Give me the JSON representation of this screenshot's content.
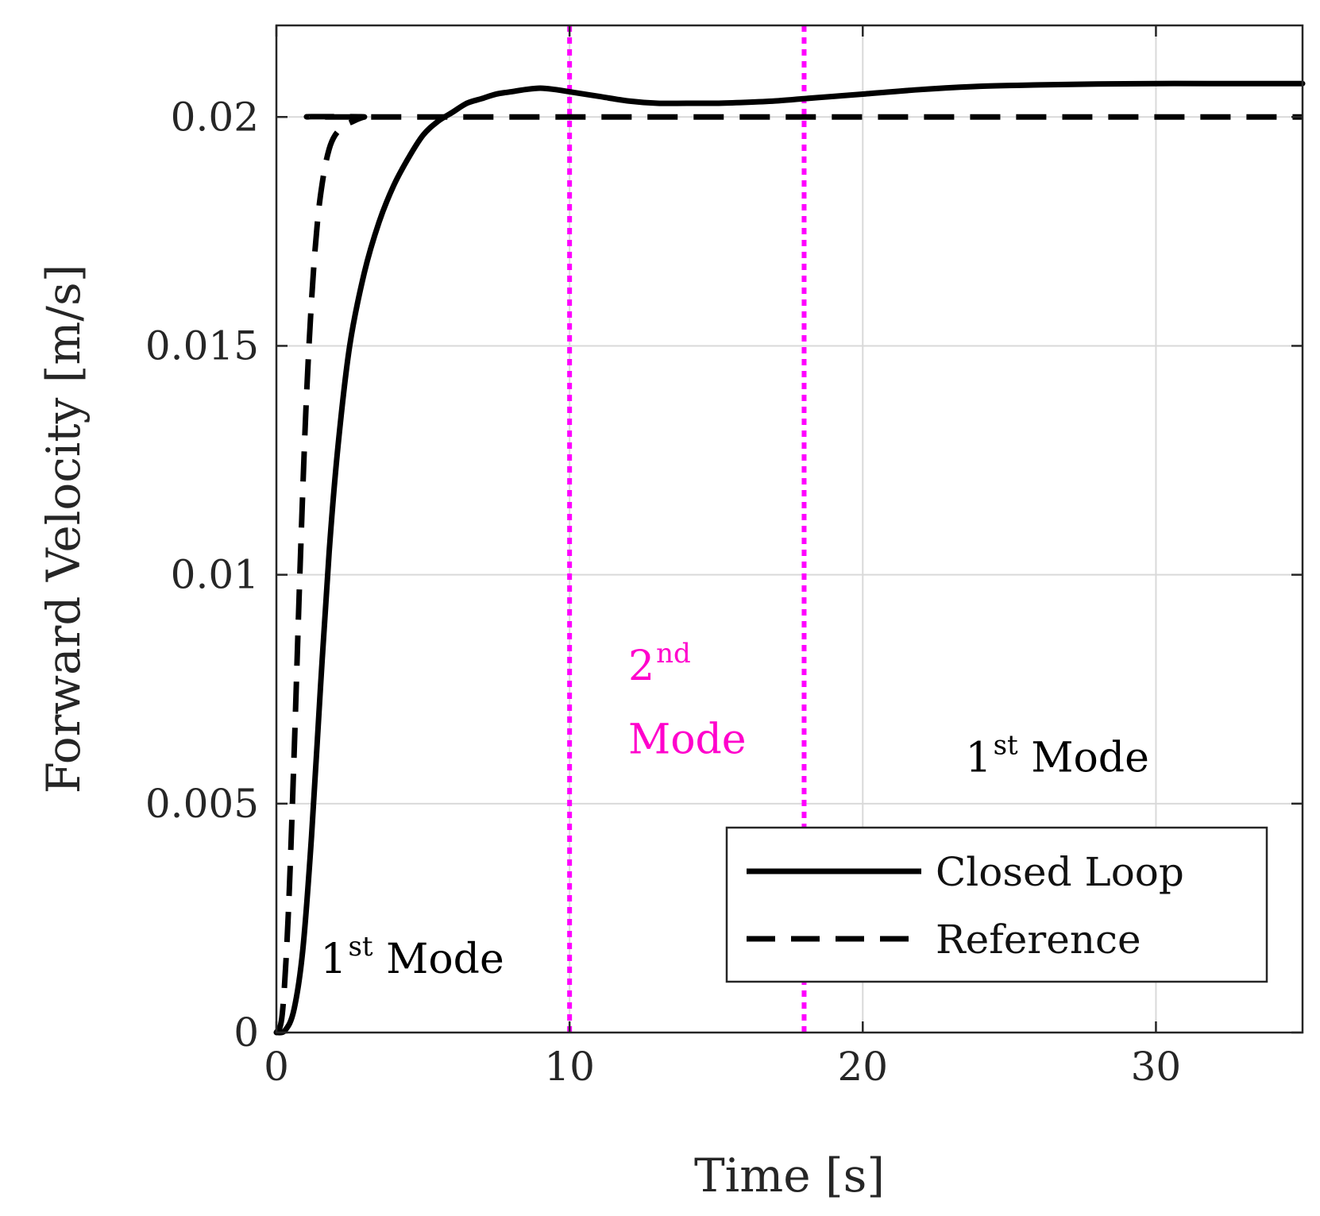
{
  "chart_data": {
    "type": "line",
    "xlabel": "Time [s]",
    "ylabel": "Forward Velocity [m/s]",
    "xlim": [
      0,
      35
    ],
    "ylim": [
      0,
      0.022
    ],
    "grid": true,
    "xticks": [
      0,
      10,
      20,
      30
    ],
    "xtick_labels": [
      "0",
      "10",
      "20",
      "30"
    ],
    "yticks": [
      0,
      0.005,
      0.01,
      0.015,
      0.02
    ],
    "ytick_labels": [
      "0",
      "0.005",
      "0.01",
      "0.015",
      "0.02"
    ],
    "legend_position": "bottom-right",
    "series": [
      {
        "name": "Closed Loop",
        "style": "solid",
        "color": "#000000",
        "x": [
          0,
          0.3,
          0.6,
          0.9,
          1.2,
          1.5,
          1.8,
          2.1,
          2.5,
          3,
          3.5,
          4,
          4.5,
          5,
          5.5,
          6,
          6.5,
          7,
          7.5,
          8,
          8.5,
          9,
          9.5,
          10,
          11,
          12,
          13,
          14,
          15,
          16,
          17,
          18,
          19,
          20,
          22,
          24,
          26,
          28,
          30,
          32,
          35
        ],
        "y": [
          0,
          5e-05,
          0.0005,
          0.0018,
          0.0043,
          0.0075,
          0.0105,
          0.0128,
          0.015,
          0.0166,
          0.0177,
          0.0185,
          0.0191,
          0.0196,
          0.0199,
          0.0201,
          0.0203,
          0.0204,
          0.0205,
          0.02055,
          0.0206,
          0.02063,
          0.0206,
          0.02055,
          0.02045,
          0.02035,
          0.0203,
          0.0203,
          0.0203,
          0.02032,
          0.02035,
          0.0204,
          0.02045,
          0.0205,
          0.0206,
          0.02067,
          0.0207,
          0.02072,
          0.02073,
          0.02073,
          0.02073
        ]
      },
      {
        "name": "Reference",
        "style": "dashed",
        "color": "#000000",
        "x": [
          0,
          0.2,
          0.4,
          0.6,
          0.8,
          1.0,
          1.2,
          1.4,
          1.6,
          1.8,
          2.0,
          2.3,
          2.6,
          3.0,
          3.5,
          35
        ],
        "y": [
          0,
          0.0004,
          0.0025,
          0.006,
          0.01,
          0.0135,
          0.016,
          0.0177,
          0.0187,
          0.0193,
          0.0196,
          0.0198,
          0.0199,
          0.02,
          0.02,
          0.02
        ]
      }
    ],
    "vlines": [
      {
        "x": 10,
        "style": "dotted",
        "color": "#ff00ff"
      },
      {
        "x": 18,
        "style": "dotted",
        "color": "#ff00ff"
      }
    ],
    "annotations": [
      {
        "id": "mode1-left",
        "base": "1",
        "sup": "st",
        "rest": " Mode",
        "x": 1.5,
        "y": 0.0013,
        "color": "#000000"
      },
      {
        "id": "mode2-line1",
        "base": "2",
        "sup": "nd",
        "rest": "",
        "x": 12,
        "y": 0.0077,
        "color": "#ff00cc"
      },
      {
        "id": "mode2-line2",
        "base": "Mode",
        "sup": "",
        "rest": "",
        "x": 12,
        "y": 0.0061,
        "color": "#ff00cc"
      },
      {
        "id": "mode1-right",
        "base": "1",
        "sup": "st",
        "rest": " Mode",
        "x": 23.5,
        "y": 0.0057,
        "color": "#000000"
      }
    ]
  }
}
